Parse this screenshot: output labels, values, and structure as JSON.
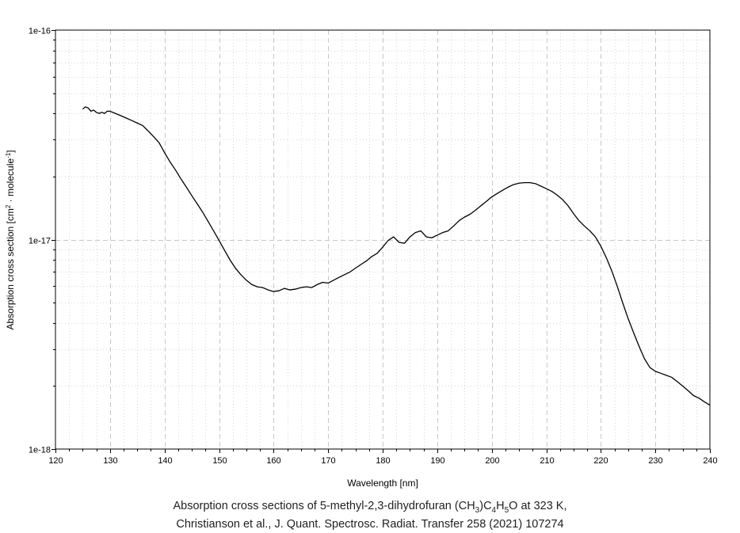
{
  "chart_data": {
    "type": "line",
    "xlabel": "Wavelength [nm]",
    "ylabel": {
      "prefix": "Absorption cross section [cm",
      "sup1": "2",
      "middle": " · molecule",
      "sup2": "-1",
      "suffix": "]"
    },
    "xlim": [
      120,
      240
    ],
    "ylim": [
      1e-18,
      1e-16
    ],
    "yscale": "log",
    "grid": true,
    "x_ticks": [
      120,
      130,
      140,
      150,
      160,
      170,
      180,
      190,
      200,
      210,
      220,
      230,
      240
    ],
    "y_ticks": [
      {
        "value": 1e-18,
        "label": "1e-18"
      },
      {
        "value": 1e-17,
        "label": "1e-17"
      },
      {
        "value": 1e-16,
        "label": "1e-16"
      }
    ],
    "series": [
      {
        "color": "#000000",
        "x": [
          125.0,
          125.5,
          126.0,
          126.5,
          127.0,
          127.5,
          128.0,
          128.5,
          129.0,
          129.5,
          130.0,
          131.0,
          132.0,
          133.0,
          134.0,
          135.0,
          136.0,
          137.0,
          138.0,
          139.0,
          140.0,
          141.0,
          142.0,
          143.0,
          144.0,
          145.0,
          146.0,
          147.0,
          148.0,
          149.0,
          150.0,
          151.0,
          152.0,
          153.0,
          154.0,
          155.0,
          156.0,
          157.0,
          158.0,
          159.0,
          160.0,
          161.0,
          162.0,
          163.0,
          164.0,
          165.0,
          166.0,
          167.0,
          168.0,
          169.0,
          170.0,
          171.0,
          172.0,
          173.0,
          174.0,
          175.0,
          176.0,
          177.0,
          178.0,
          179.0,
          180.0,
          181.0,
          182.0,
          183.0,
          184.0,
          185.0,
          186.0,
          187.0,
          188.0,
          189.0,
          190.0,
          191.0,
          192.0,
          193.0,
          194.0,
          195.0,
          196.0,
          197.0,
          198.0,
          199.0,
          200.0,
          201.0,
          202.0,
          203.0,
          204.0,
          205.0,
          206.0,
          207.0,
          208.0,
          209.0,
          210.0,
          211.0,
          212.0,
          213.0,
          214.0,
          215.0,
          216.0,
          217.0,
          218.0,
          219.0,
          220.0,
          221.0,
          222.0,
          223.0,
          224.0,
          225.0,
          226.0,
          227.0,
          228.0,
          229.0,
          230.0,
          231.0,
          232.0,
          233.0,
          234.0,
          235.0,
          236.0,
          237.0,
          238.0,
          239.0,
          240.0
        ],
        "y": [
          4.2e-17,
          4.3e-17,
          4.25e-17,
          4.1e-17,
          4.15e-17,
          4.05e-17,
          4e-17,
          4.05e-17,
          4e-17,
          4.1e-17,
          4.1e-17,
          4e-17,
          3.9e-17,
          3.8e-17,
          3.7e-17,
          3.6e-17,
          3.5e-17,
          3.3e-17,
          3.1e-17,
          2.9e-17,
          2.6e-17,
          2.35e-17,
          2.15e-17,
          1.95e-17,
          1.78e-17,
          1.62e-17,
          1.48e-17,
          1.35e-17,
          1.22e-17,
          1.1e-17,
          9.9e-18,
          8.9e-18,
          8e-18,
          7.3e-18,
          6.8e-18,
          6.4e-18,
          6.1e-18,
          5.95e-18,
          5.9e-18,
          5.75e-18,
          5.65e-18,
          5.7e-18,
          5.85e-18,
          5.75e-18,
          5.8e-18,
          5.9e-18,
          5.95e-18,
          5.9e-18,
          6.1e-18,
          6.25e-18,
          6.2e-18,
          6.4e-18,
          6.6e-18,
          6.8e-18,
          7e-18,
          7.3e-18,
          7.6e-18,
          7.9e-18,
          8.3e-18,
          8.6e-18,
          9.2e-18,
          9.9e-18,
          1.03e-17,
          9.7e-18,
          9.6e-18,
          1.03e-17,
          1.08e-17,
          1.1e-17,
          1.03e-17,
          1.02e-17,
          1.05e-17,
          1.08e-17,
          1.1e-17,
          1.16e-17,
          1.23e-17,
          1.28e-17,
          1.32e-17,
          1.38e-17,
          1.45e-17,
          1.52e-17,
          1.6e-17,
          1.66e-17,
          1.72e-17,
          1.78e-17,
          1.83e-17,
          1.86e-17,
          1.87e-17,
          1.87e-17,
          1.85e-17,
          1.8e-17,
          1.75e-17,
          1.7e-17,
          1.63e-17,
          1.55e-17,
          1.45e-17,
          1.33e-17,
          1.23e-17,
          1.16e-17,
          1.1e-17,
          1.03e-17,
          9.3e-18,
          8.2e-18,
          7.1e-18,
          6e-18,
          5e-18,
          4.2e-18,
          3.6e-18,
          3.1e-18,
          2.7e-18,
          2.45e-18,
          2.35e-18,
          2.3e-18,
          2.25e-18,
          2.2e-18,
          2.1e-18,
          2e-18,
          1.9e-18,
          1.8e-18,
          1.75e-18,
          1.68e-18,
          1.62e-18
        ]
      }
    ]
  },
  "caption": {
    "line1_prefix": "Absorption cross sections of 5-methyl-2,3-dihydrofuran (CH",
    "sub1": "3",
    "mid1": ")C",
    "sub2": "4",
    "mid2": "H",
    "sub3": "5",
    "line1_suffix": "O at 323 K,",
    "line2": "Christianson et al., J. Quant. Spectrosc. Radiat. Transfer 258 (2021) 107274"
  }
}
